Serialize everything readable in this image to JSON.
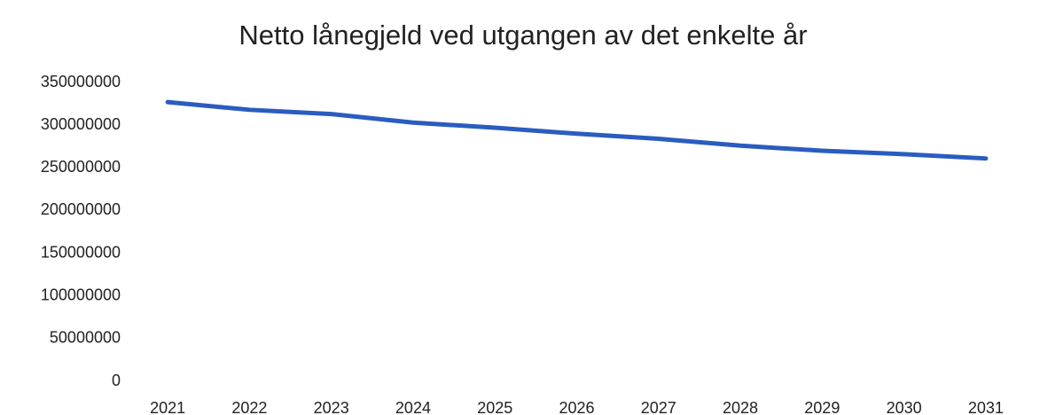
{
  "chart_data": {
    "type": "line",
    "title": "Netto lånegjeld ved utgangen av det enkelte år",
    "categories": [
      "2021",
      "2022",
      "2023",
      "2024",
      "2025",
      "2026",
      "2027",
      "2028",
      "2029",
      "2030",
      "2031"
    ],
    "series": [
      {
        "name": "Netto lånegjeld",
        "color": "#2a5cc0",
        "values": [
          327000000,
          318000000,
          313000000,
          303000000,
          297000000,
          290000000,
          284000000,
          276000000,
          270000000,
          266000000,
          261000000
        ]
      }
    ],
    "ylim": [
      0,
      350000000
    ],
    "yticks": [
      0,
      50000000,
      100000000,
      150000000,
      200000000,
      250000000,
      300000000,
      350000000
    ],
    "grid": false,
    "legend": false
  }
}
